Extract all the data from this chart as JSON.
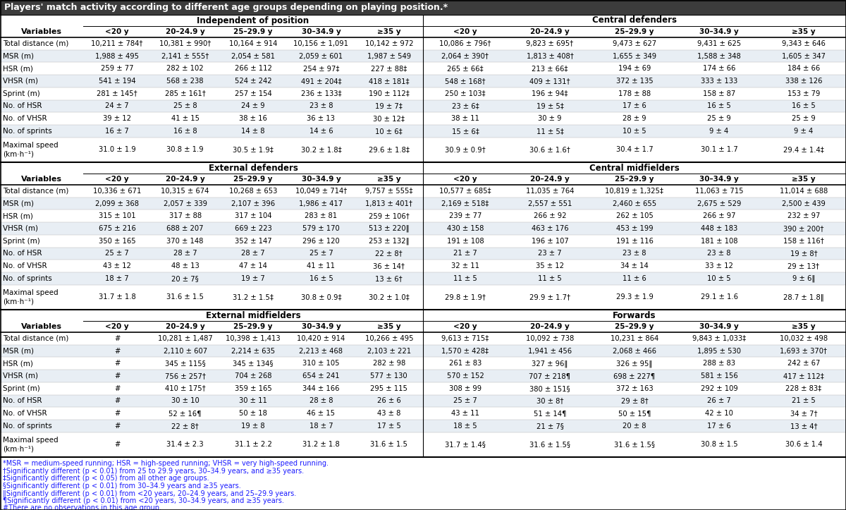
{
  "title": "Players' match activity according to different age groups depending on playing position.*",
  "footnotes": [
    "*MSR = medium-speed running; HSR = high-speed running; VHSR = very high-speed running.",
    "†Significantly different (p < 0.01) from 25 to 29.9 years, 30–34.9 years, and ≥35 years.",
    "‡Significantly different (p < 0.05) from all other age groups.",
    "§Significantly different (p < 0.01) from 30–34.9 years and ≥35 years.",
    "‖Significantly different (p < 0.01) from <20 years, 20–24.9 years, and 25–29.9 years.",
    "¶Significantly different (p < 0.01) from <20 years, 30–34.9 years, and ≥35 years.",
    "#There are no observations in this age group."
  ],
  "age_cols": [
    "<20 y",
    "20–24.9 y",
    "25–29.9 y",
    "30–34.9 y",
    "≥35 y"
  ],
  "variables": [
    "Total distance (m)",
    "MSR (m)",
    "HSR (m)",
    "VHSR (m)",
    "Sprint (m)",
    "No. of HSR",
    "No. of VHSR",
    "No. of sprints",
    "Maximal speed"
  ],
  "var_unit": "(km·h⁻¹)",
  "sections": [
    {
      "name": "Independent of position",
      "data": [
        [
          "10,211 ± 784†",
          "10,381 ± 990†",
          "10,164 ± 914",
          "10,156 ± 1,091",
          "10,142 ± 972"
        ],
        [
          "1,988 ± 495",
          "2,141 ± 555†",
          "2,054 ± 581",
          "2,059 ± 601",
          "1,987 ± 549"
        ],
        [
          "259 ± 77",
          "282 ± 102",
          "266 ± 112",
          "254 ± 97‡",
          "227 ± 88‡"
        ],
        [
          "541 ± 194",
          "568 ± 238",
          "524 ± 242",
          "491 ± 204‡",
          "418 ± 181‡"
        ],
        [
          "281 ± 145†",
          "285 ± 161†",
          "257 ± 154",
          "236 ± 133‡",
          "190 ± 112‡"
        ],
        [
          "24 ± 7",
          "25 ± 8",
          "24 ± 9",
          "23 ± 8",
          "19 ± 7‡"
        ],
        [
          "39 ± 12",
          "41 ± 15",
          "38 ± 16",
          "36 ± 13",
          "30 ± 12‡"
        ],
        [
          "16 ± 7",
          "16 ± 8",
          "14 ± 8",
          "14 ± 6",
          "10 ± 6‡"
        ],
        [
          "31.0 ± 1.9",
          "30.8 ± 1.9",
          "30.5 ± 1.9‡",
          "30.2 ± 1.8‡",
          "29.6 ± 1.8‡"
        ]
      ]
    },
    {
      "name": "Central defenders",
      "data": [
        [
          "10,086 ± 796†",
          "9,823 ± 695†",
          "9,473 ± 627",
          "9,431 ± 625",
          "9,343 ± 646"
        ],
        [
          "2,064 ± 390†",
          "1,813 ± 408†",
          "1,655 ± 349",
          "1,588 ± 348",
          "1,605 ± 347"
        ],
        [
          "265 ± 66‡",
          "213 ± 66‡",
          "194 ± 69",
          "174 ± 66",
          "184 ± 66"
        ],
        [
          "548 ± 168†",
          "409 ± 131†",
          "372 ± 135",
          "333 ± 133",
          "338 ± 126"
        ],
        [
          "250 ± 103‡",
          "196 ± 94‡",
          "178 ± 88",
          "158 ± 87",
          "153 ± 79"
        ],
        [
          "23 ± 6‡",
          "19 ± 5‡",
          "17 ± 6",
          "16 ± 5",
          "16 ± 5"
        ],
        [
          "38 ± 11",
          "30 ± 9",
          "28 ± 9",
          "25 ± 9",
          "25 ± 9"
        ],
        [
          "15 ± 6‡",
          "11 ± 5‡",
          "10 ± 5",
          "9 ± 4",
          "9 ± 4"
        ],
        [
          "30.9 ± 0.9†",
          "30.6 ± 1.6†",
          "30.4 ± 1.7",
          "30.1 ± 1.7",
          "29.4 ± 1.4‡"
        ]
      ]
    },
    {
      "name": "External defenders",
      "data": [
        [
          "10,336 ± 671",
          "10,315 ± 674",
          "10,268 ± 653",
          "10,049 ± 714†",
          "9,757 ± 555‡"
        ],
        [
          "2,099 ± 368",
          "2,057 ± 339",
          "2,107 ± 396",
          "1,986 ± 417",
          "1,813 ± 401†"
        ],
        [
          "315 ± 101",
          "317 ± 88",
          "317 ± 104",
          "283 ± 81",
          "259 ± 106†"
        ],
        [
          "675 ± 216",
          "688 ± 207",
          "669 ± 223",
          "579 ± 170",
          "513 ± 220‖"
        ],
        [
          "350 ± 165",
          "370 ± 148",
          "352 ± 147",
          "296 ± 120",
          "253 ± 132‖"
        ],
        [
          "25 ± 7",
          "28 ± 7",
          "28 ± 7",
          "25 ± 7",
          "22 ± 8†"
        ],
        [
          "43 ± 12",
          "48 ± 13",
          "47 ± 14",
          "41 ± 11",
          "36 ± 14†"
        ],
        [
          "18 ± 7",
          "20 ± 7§",
          "19 ± 7",
          "16 ± 5",
          "13 ± 6†"
        ],
        [
          "31.7 ± 1.8",
          "31.6 ± 1.5",
          "31.2 ± 1.5‡",
          "30.8 ± 0.9‡",
          "30.2 ± 1.0‡"
        ]
      ]
    },
    {
      "name": "Central midfielders",
      "data": [
        [
          "10,577 ± 685‡",
          "11,035 ± 764",
          "10,819 ± 1,325‡",
          "11,063 ± 715",
          "11,014 ± 688"
        ],
        [
          "2,169 ± 518‡",
          "2,557 ± 551",
          "2,460 ± 655",
          "2,675 ± 529",
          "2,500 ± 439"
        ],
        [
          "239 ± 77",
          "266 ± 92",
          "262 ± 105",
          "266 ± 97",
          "232 ± 97"
        ],
        [
          "430 ± 158",
          "463 ± 176",
          "453 ± 199",
          "448 ± 183",
          "390 ± 200†"
        ],
        [
          "191 ± 108",
          "196 ± 107",
          "191 ± 116",
          "181 ± 108",
          "158 ± 116†"
        ],
        [
          "21 ± 7",
          "23 ± 7",
          "23 ± 8",
          "23 ± 8",
          "19 ± 8†"
        ],
        [
          "32 ± 11",
          "35 ± 12",
          "34 ± 14",
          "33 ± 12",
          "29 ± 13†"
        ],
        [
          "11 ± 5",
          "11 ± 5",
          "11 ± 6",
          "10 ± 5",
          "9 ± 6‖"
        ],
        [
          "29.8 ± 1.9†",
          "29.9 ± 1.7†",
          "29.3 ± 1.9",
          "29.1 ± 1.6",
          "28.7 ± 1.8‖"
        ]
      ]
    },
    {
      "name": "External midfielders",
      "data": [
        [
          "#",
          "10,281 ± 1,487",
          "10,398 ± 1,413",
          "10,420 ± 914",
          "10,266 ± 495"
        ],
        [
          "#",
          "2,110 ± 607",
          "2,214 ± 635",
          "2,213 ± 468",
          "2,103 ± 221"
        ],
        [
          "#",
          "345 ± 115§",
          "345 ± 134§",
          "310 ± 105",
          "282 ± 98"
        ],
        [
          "#",
          "756 ± 257†",
          "704 ± 268",
          "654 ± 241",
          "577 ± 130"
        ],
        [
          "#",
          "410 ± 175†",
          "359 ± 165",
          "344 ± 166",
          "295 ± 115"
        ],
        [
          "#",
          "30 ± 10",
          "30 ± 11",
          "28 ± 8",
          "26 ± 6"
        ],
        [
          "#",
          "52 ± 16¶",
          "50 ± 18",
          "46 ± 15",
          "43 ± 8"
        ],
        [
          "#",
          "22 ± 8†",
          "19 ± 8",
          "18 ± 7",
          "17 ± 5"
        ],
        [
          "#",
          "31.4 ± 2.3",
          "31.1 ± 2.2",
          "31.2 ± 1.8",
          "31.6 ± 1.5"
        ]
      ]
    },
    {
      "name": "Forwards",
      "data": [
        [
          "9,613 ± 715‡",
          "10,092 ± 738",
          "10,231 ± 864",
          "9,843 ± 1,033‡",
          "10,032 ± 498"
        ],
        [
          "1,570 ± 428‡",
          "1,941 ± 456",
          "2,068 ± 466",
          "1,895 ± 530",
          "1,693 ± 370†"
        ],
        [
          "261 ± 83",
          "327 ± 96‖",
          "326 ± 95‖",
          "288 ± 83",
          "242 ± 67"
        ],
        [
          "570 ± 152",
          "707 ± 218¶",
          "698 ± 227¶",
          "581 ± 156",
          "417 ± 112‡"
        ],
        [
          "308 ± 99",
          "380 ± 151§",
          "372 ± 163",
          "292 ± 109",
          "228 ± 83‡"
        ],
        [
          "25 ± 7",
          "30 ± 8†",
          "29 ± 8†",
          "26 ± 7",
          "21 ± 5"
        ],
        [
          "43 ± 11",
          "51 ± 14¶",
          "50 ± 15¶",
          "42 ± 10",
          "34 ± 7†"
        ],
        [
          "18 ± 5",
          "21 ± 7§",
          "20 ± 8",
          "17 ± 6",
          "13 ± 4†"
        ],
        [
          "31.7 ± 1.4§",
          "31.6 ± 1.5§",
          "31.6 ± 1.5§",
          "30.8 ± 1.5",
          "30.6 ± 1.4"
        ]
      ]
    }
  ],
  "title_bg": "#3c3c3c",
  "title_color": "#ffffff",
  "header_color": "#000000",
  "row_bg_odd": "#ffffff",
  "row_bg_even": "#e8eef4",
  "section_divider_color": "#000000",
  "text_color": "#000000",
  "footnote_color": "#1a1aff"
}
